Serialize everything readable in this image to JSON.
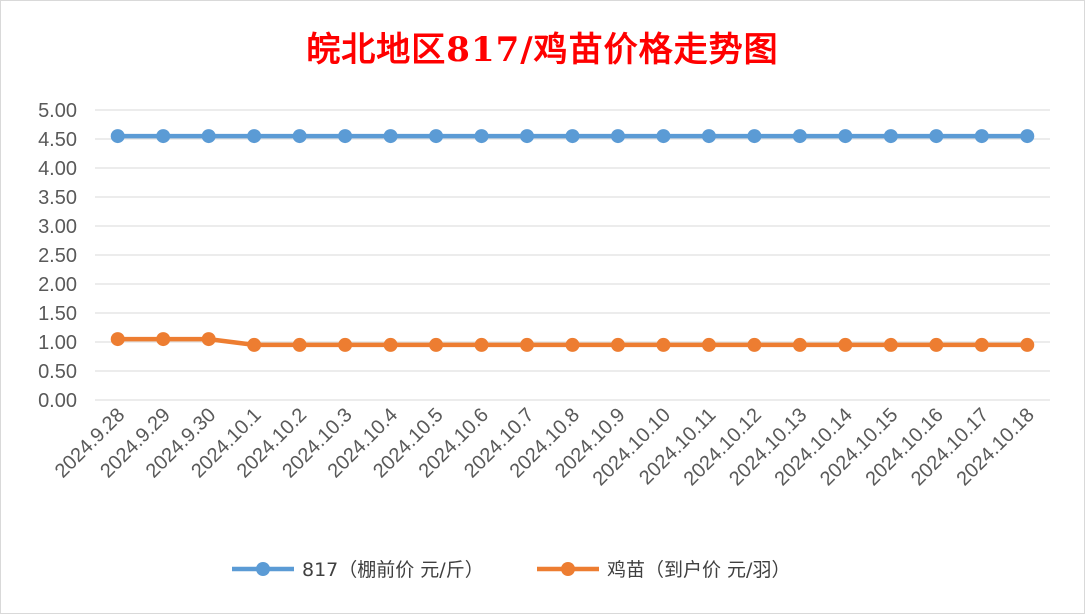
{
  "chart_data": {
    "type": "line",
    "title": "皖北地区817/鸡苗价格走势图",
    "categories": [
      "2024.9.28",
      "2024.9.29",
      "2024.9.30",
      "2024.10.1",
      "2024.10.2",
      "2024.10.3",
      "2024.10.4",
      "2024.10.5",
      "2024.10.6",
      "2024.10.7",
      "2024.10.8",
      "2024.10.9",
      "2024.10.10",
      "2024.10.11",
      "2024.10.12",
      "2024.10.13",
      "2024.10.14",
      "2024.10.15",
      "2024.10.16",
      "2024.10.17",
      "2024.10.18"
    ],
    "series": [
      {
        "name": "817（棚前价 元/斤）",
        "color": "#5b9bd5",
        "values": [
          4.55,
          4.55,
          4.55,
          4.55,
          4.55,
          4.55,
          4.55,
          4.55,
          4.55,
          4.55,
          4.55,
          4.55,
          4.55,
          4.55,
          4.55,
          4.55,
          4.55,
          4.55,
          4.55,
          4.55,
          4.55
        ]
      },
      {
        "name": "鸡苗（到户价 元/羽）",
        "color": "#ed7d31",
        "values": [
          1.05,
          1.05,
          1.05,
          0.95,
          0.95,
          0.95,
          0.95,
          0.95,
          0.95,
          0.95,
          0.95,
          0.95,
          0.95,
          0.95,
          0.95,
          0.95,
          0.95,
          0.95,
          0.95,
          0.95,
          0.95
        ]
      }
    ],
    "ylim": [
      0,
      5
    ],
    "ytick_labels": [
      "0.00",
      "0.50",
      "1.00",
      "1.50",
      "2.00",
      "2.50",
      "3.00",
      "3.50",
      "4.00",
      "4.50",
      "5.00"
    ],
    "grid": true,
    "legend_position": "bottom"
  }
}
